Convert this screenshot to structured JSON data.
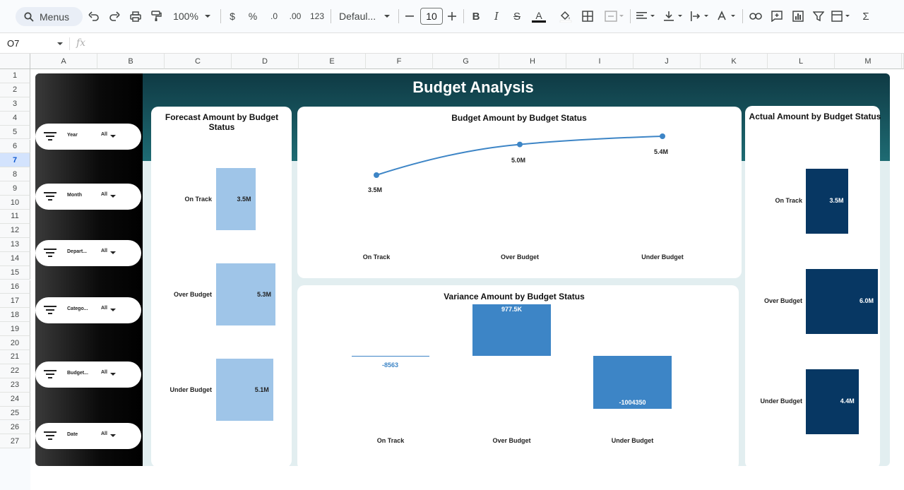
{
  "toolbar": {
    "menus_label": "Menus",
    "zoom": "100%",
    "currency": "$",
    "percent": "%",
    "dec_decrease": ".0",
    "dec_increase": ".00",
    "number_format": "123",
    "font": "Defaul...",
    "font_size": "10"
  },
  "formula_bar": {
    "cell_ref": "O7",
    "fx": "fx"
  },
  "columns": [
    "A",
    "B",
    "C",
    "D",
    "E",
    "F",
    "G",
    "H",
    "I",
    "J",
    "K",
    "L",
    "M"
  ],
  "rows": [
    "1",
    "2",
    "3",
    "4",
    "5",
    "6",
    "7",
    "8",
    "9",
    "10",
    "11",
    "12",
    "13",
    "14",
    "15",
    "16",
    "17",
    "18",
    "19",
    "20",
    "21",
    "22",
    "23",
    "24",
    "25",
    "26",
    "27"
  ],
  "selected_row": "7",
  "dashboard": {
    "title": "Budget Analysis",
    "slicers": [
      {
        "label": "Year",
        "value": "All"
      },
      {
        "label": "Month",
        "value": "All"
      },
      {
        "label": "Depart...",
        "value": "All"
      },
      {
        "label": "Catego...",
        "value": "All"
      },
      {
        "label": "Budget...",
        "value": "All"
      },
      {
        "label": "Date",
        "value": "All"
      }
    ],
    "colors": {
      "header_dark": "#0f3a44",
      "header_light": "#1e6b73",
      "forecast_bar": "#9fc5e8",
      "line": "#3d85c6",
      "variance_bar": "#3d85c6",
      "actual_bar": "#073763"
    }
  },
  "chart_data": [
    {
      "type": "bar",
      "title": "Forecast Amount by Budget Status",
      "categories": [
        "On Track",
        "Over Budget",
        "Under Budget"
      ],
      "values": [
        3.5,
        5.3,
        5.1
      ],
      "labels": [
        "3.5M",
        "5.3M",
        "5.1M"
      ],
      "unit": "M",
      "orientation": "horizontal"
    },
    {
      "type": "line",
      "title": "Budget Amount by Budget Status",
      "categories": [
        "On Track",
        "Over Budget",
        "Under Budget"
      ],
      "values": [
        3.5,
        5.0,
        5.4
      ],
      "labels": [
        "3.5M",
        "5.0M",
        "5.4M"
      ],
      "unit": "M"
    },
    {
      "type": "bar",
      "title": "Variance Amount by Budget Status",
      "categories": [
        "On Track",
        "Over Budget",
        "Under Budget"
      ],
      "values": [
        -8563,
        977500,
        -1004350
      ],
      "labels": [
        "-8563",
        "977.5K",
        "-1004350"
      ]
    },
    {
      "type": "bar",
      "title": "Actual Amount by Budget Status",
      "categories": [
        "On Track",
        "Over Budget",
        "Under Budget"
      ],
      "values": [
        3.5,
        6.0,
        4.4
      ],
      "labels": [
        "3.5M",
        "6.0M",
        "4.4M"
      ],
      "unit": "M",
      "orientation": "horizontal"
    }
  ]
}
